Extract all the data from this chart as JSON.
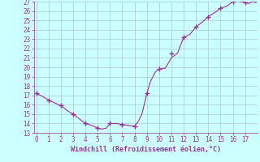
{
  "x": [
    0,
    0.5,
    1,
    1.5,
    2,
    2.5,
    3,
    3.5,
    4,
    4.5,
    5,
    5.3,
    5.7,
    6,
    6.5,
    7,
    7.5,
    8,
    8.3,
    8.6,
    9,
    9.3,
    9.7,
    10,
    10.5,
    11,
    11.5,
    12,
    12.5,
    13,
    13.5,
    14,
    14.5,
    15,
    15.5,
    16,
    16.3,
    16.6,
    17,
    17.3,
    17.6,
    17.9
  ],
  "y": [
    17.2,
    16.9,
    16.5,
    16.2,
    15.9,
    15.4,
    15.0,
    14.5,
    14.0,
    13.8,
    13.5,
    13.4,
    13.5,
    14.0,
    14.0,
    13.9,
    13.8,
    13.7,
    14.2,
    15.0,
    17.2,
    18.5,
    19.5,
    19.8,
    19.9,
    21.0,
    21.5,
    23.2,
    23.5,
    24.3,
    24.8,
    25.4,
    25.8,
    26.3,
    26.5,
    27.0,
    27.1,
    27.0,
    26.9,
    26.8,
    27.0,
    26.9
  ],
  "marker_x": [
    0,
    1,
    2,
    3,
    4,
    5,
    6,
    7,
    8,
    9,
    10,
    11,
    12,
    13,
    14,
    15,
    16,
    17
  ],
  "marker_y": [
    17.2,
    16.5,
    15.9,
    15.0,
    14.0,
    13.5,
    14.0,
    13.9,
    13.7,
    17.2,
    19.8,
    21.5,
    23.2,
    24.3,
    25.4,
    26.3,
    27.0,
    26.9
  ],
  "ylim": [
    13,
    27
  ],
  "xlim": [
    -0.2,
    18.0
  ],
  "yticks": [
    13,
    14,
    15,
    16,
    17,
    18,
    19,
    20,
    21,
    22,
    23,
    24,
    25,
    26,
    27
  ],
  "xticks": [
    0,
    1,
    2,
    3,
    4,
    5,
    6,
    7,
    8,
    9,
    10,
    11,
    12,
    13,
    14,
    15,
    16,
    17
  ],
  "line_color": "#993399",
  "marker_color": "#993399",
  "bg_color": "#ccffff",
  "grid_color": "#aacccc",
  "xlabel": "Windchill (Refroidissement éolien,°C)",
  "xlabel_color": "#993399",
  "tick_color": "#993399"
}
